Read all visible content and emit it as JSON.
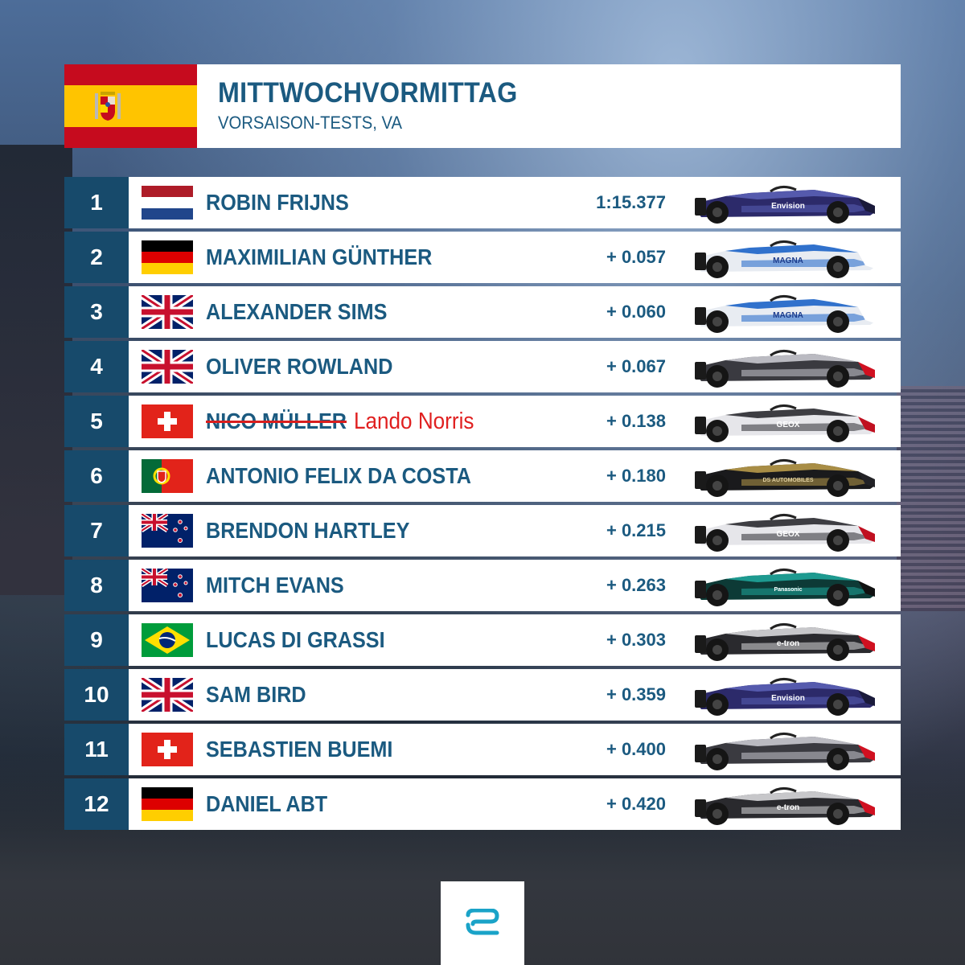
{
  "header": {
    "title": "MITTWOCHVORMITTAG",
    "subtitle": "VORSAISON-TESTS, VA",
    "flag_icon": "spain-flag-icon"
  },
  "colors": {
    "accent": "#174a6b",
    "text": "#1b5a80",
    "correction": "#e02020"
  },
  "rows": [
    {
      "pos": "1",
      "name": "ROBIN FRIJNS",
      "time": "1:15.377",
      "flag": "netherlands",
      "car": "envision-virgin"
    },
    {
      "pos": "2",
      "name": "MAXIMILIAN GÜNTHER",
      "time": "+ 0.057",
      "flag": "germany",
      "car": "bmw"
    },
    {
      "pos": "3",
      "name": "ALEXANDER SIMS",
      "time": "+ 0.060",
      "flag": "uk",
      "car": "bmw"
    },
    {
      "pos": "4",
      "name": "OLIVER ROWLAND",
      "time": "+ 0.067",
      "flag": "uk",
      "car": "nissan"
    },
    {
      "pos": "5",
      "name": "NICO MÜLLER",
      "correction": "Lando Norris",
      "time": "+ 0.138",
      "flag": "switzerland",
      "car": "dragon"
    },
    {
      "pos": "6",
      "name": "ANTONIO FELIX DA COSTA",
      "time": "+ 0.180",
      "flag": "portugal",
      "car": "ds-techeetah"
    },
    {
      "pos": "7",
      "name": "BRENDON HARTLEY",
      "time": "+ 0.215",
      "flag": "new-zealand",
      "car": "dragon"
    },
    {
      "pos": "8",
      "name": "MITCH EVANS",
      "time": "+ 0.263",
      "flag": "new-zealand",
      "car": "jaguar"
    },
    {
      "pos": "9",
      "name": "LUCAS DI GRASSI",
      "time": "+ 0.303",
      "flag": "brazil",
      "car": "audi"
    },
    {
      "pos": "10",
      "name": "SAM BIRD",
      "time": "+ 0.359",
      "flag": "uk",
      "car": "envision-virgin"
    },
    {
      "pos": "11",
      "name": "SEBASTIEN BUEMI",
      "time": "+ 0.400",
      "flag": "switzerland",
      "car": "nissan"
    },
    {
      "pos": "12",
      "name": "DANIEL ABT",
      "time": "+ 0.420",
      "flag": "germany",
      "car": "audi"
    }
  ],
  "footer": {
    "logo_icon": "formula-e-logo-icon"
  }
}
